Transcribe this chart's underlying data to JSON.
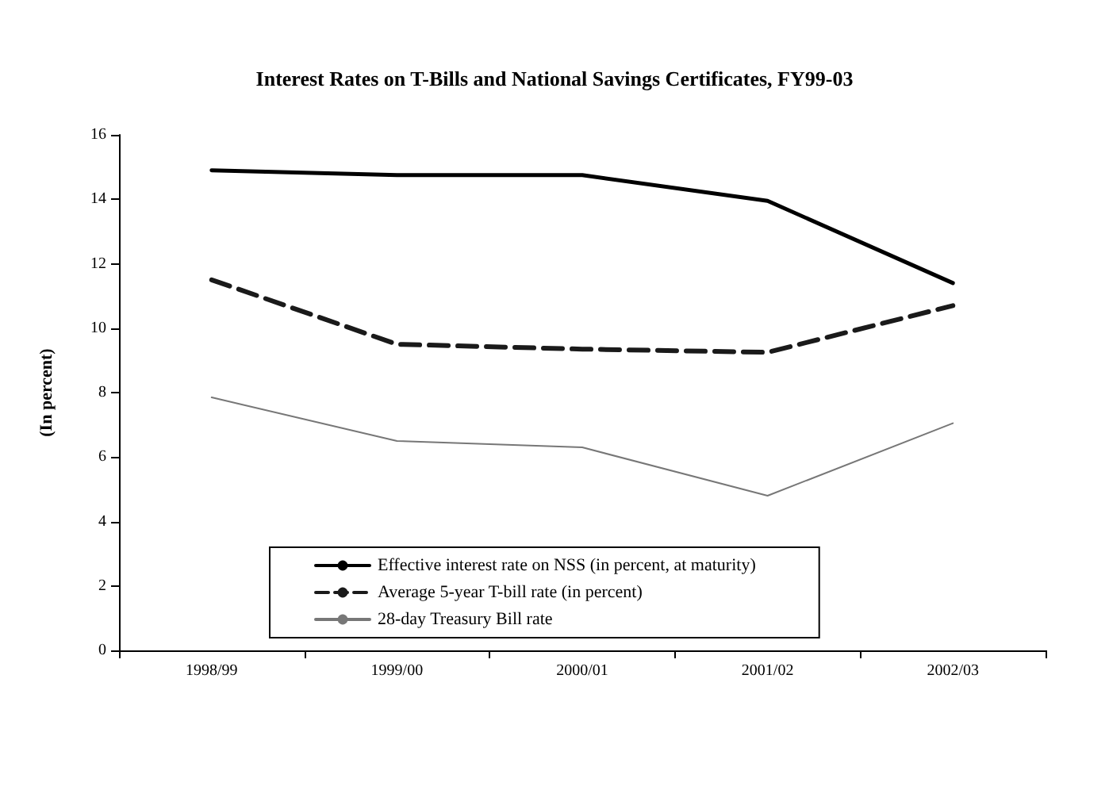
{
  "chart_data": {
    "type": "line",
    "title": "Interest Rates on T-Bills and National Savings Certificates, FY99-03",
    "ylabel": "(In percent)",
    "categories": [
      "1998/99",
      "1999/00",
      "2000/01",
      "2001/02",
      "2002/03"
    ],
    "series": [
      {
        "name": "Effective interest rate on NSS (in percent, at maturity)",
        "color": "#000000",
        "line_style": "solid",
        "values": [
          14.9,
          14.75,
          14.75,
          13.95,
          11.4
        ]
      },
      {
        "name": "Average 5-year T-bill rate (in percent)",
        "color": "#1a1a1a",
        "line_style": "dashed",
        "values": [
          11.5,
          9.5,
          9.35,
          9.25,
          10.7
        ]
      },
      {
        "name": "28-day Treasury Bill rate",
        "color": "#777777",
        "line_style": "solid",
        "values": [
          7.85,
          6.5,
          6.3,
          4.8,
          7.05
        ]
      }
    ],
    "ylim": [
      0,
      16
    ],
    "yticks": [
      0,
      2,
      4,
      6,
      8,
      10,
      12,
      14,
      16
    ],
    "grid": false,
    "legend": "bottom",
    "marker": "none"
  }
}
